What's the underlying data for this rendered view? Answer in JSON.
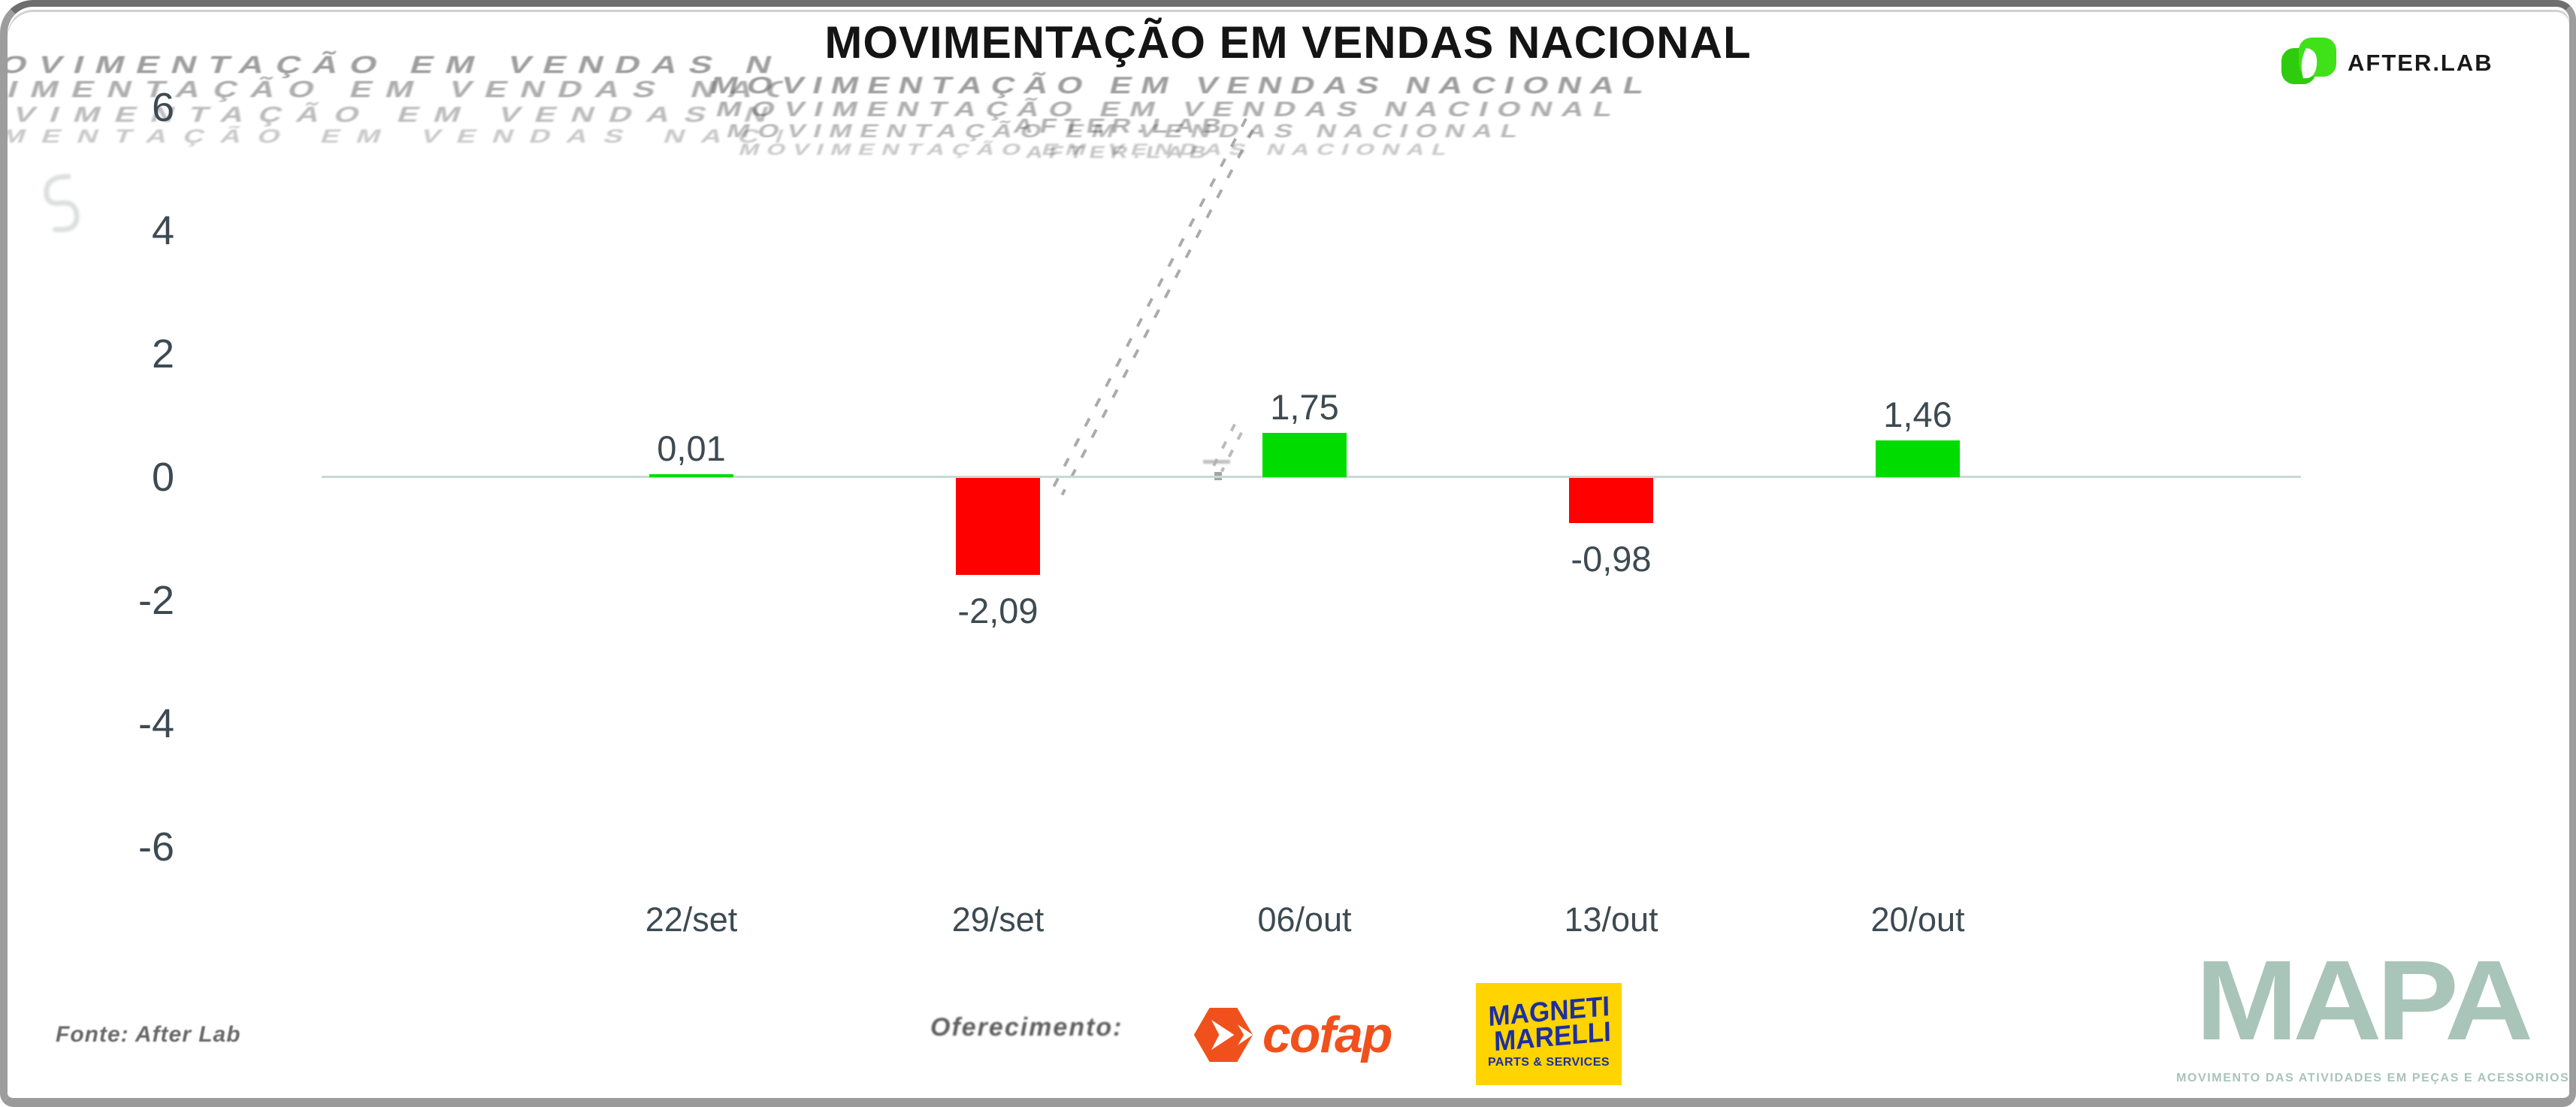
{
  "header": {
    "title": "MOVIMENTAÇÃO EM VENDAS NACIONAL",
    "brand": {
      "name": "AFTER.LAB",
      "icon_color": "#3fe119"
    }
  },
  "chart_data": {
    "type": "bar",
    "title": "MOVIMENTAÇÃO EM VENDAS NACIONAL",
    "categories": [
      "22/set",
      "29/set",
      "06/out",
      "13/out",
      "20/out"
    ],
    "values": [
      0.01,
      -2.09,
      1.75,
      -0.98,
      1.46
    ],
    "value_labels": [
      "0,01",
      "-2,09",
      "1,75",
      "-0,98",
      "1,46"
    ],
    "y_ticks": [
      "6",
      "4",
      "2",
      "0",
      "-2",
      "-4",
      "-6"
    ],
    "ylim": [
      -6,
      6
    ],
    "xlabel": "",
    "ylabel": "",
    "legend": "none",
    "grid": false,
    "bar_colors": {
      "positive": "#00dc00",
      "negative": "#fe0000"
    },
    "axis_line_color": "#c9d9d3",
    "label_color": "#3d4a52"
  },
  "footer": {
    "source": "Fonte: After Lab",
    "sponsor_label": "Oferecimento:",
    "sponsors": {
      "cofap": {
        "name": "cofap",
        "color": "#f0511c"
      },
      "magneti_marelli": {
        "line1": "MAGNETI",
        "line2": "MARELLI",
        "tagline": "PARTS & SERVICES",
        "bg_color": "#ffd400",
        "text_color": "#1d2fa0"
      }
    },
    "mapa": {
      "name": "MAPA",
      "tagline": "MOVIMENTO DAS ATIVIDADES EM PEÇAS E ACESSORIOS",
      "color": "#a9c4b9"
    }
  }
}
